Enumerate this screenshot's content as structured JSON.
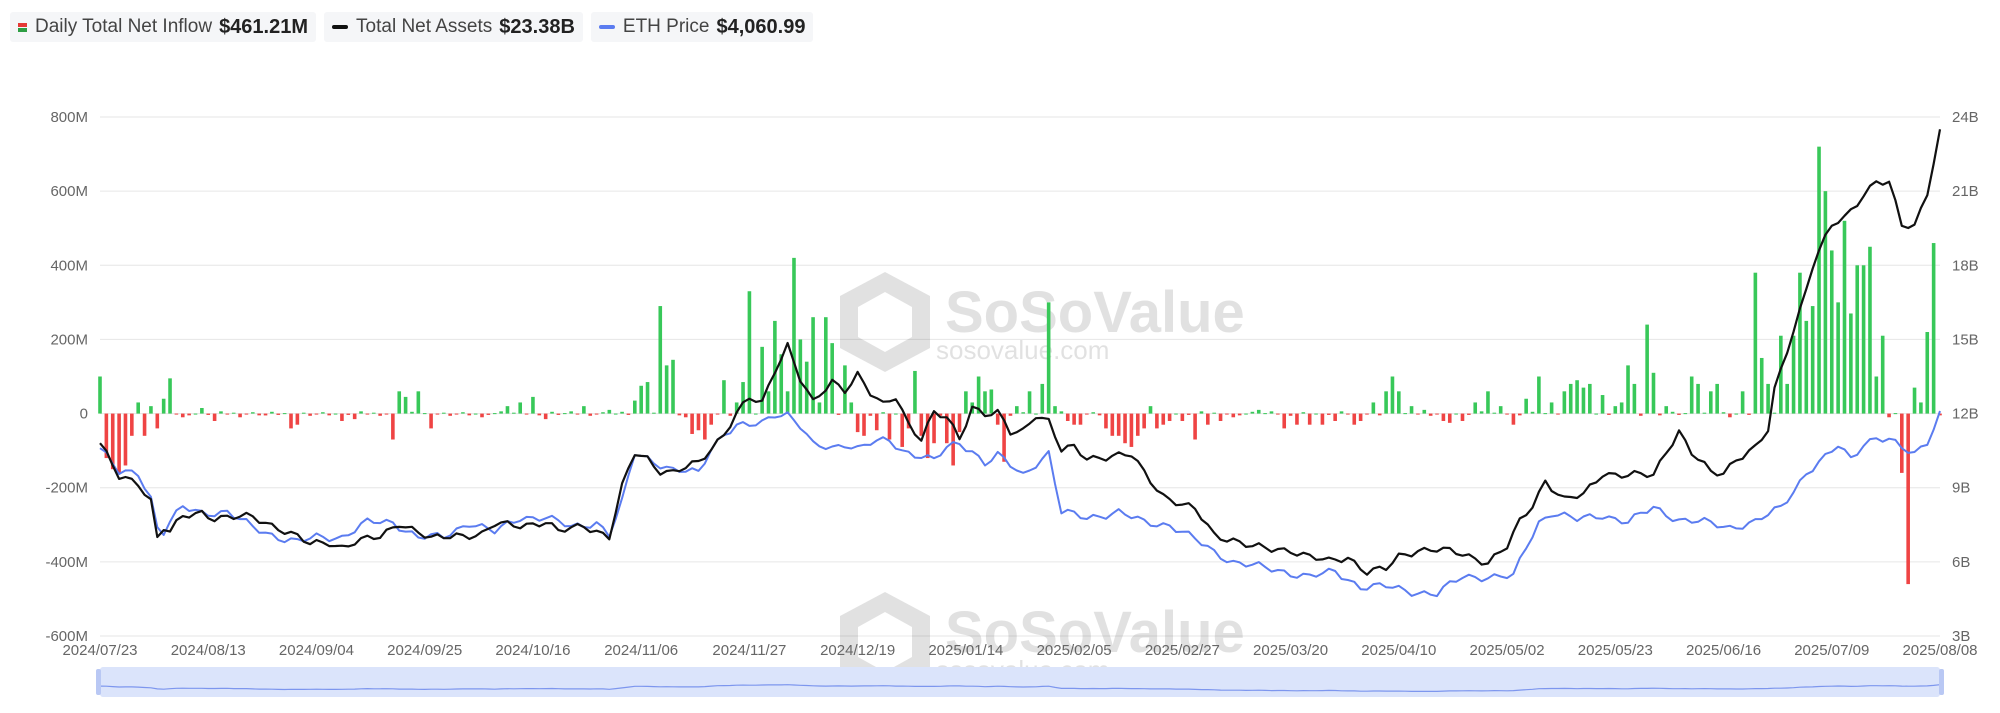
{
  "legend": [
    {
      "label": "Daily Total Net Inflow",
      "value": "$461.21M",
      "key": "split"
    },
    {
      "label": "Total Net Assets",
      "value": "$23.38B",
      "color": "#111111"
    },
    {
      "label": "ETH Price",
      "value": "$4,060.99",
      "color": "#5b7cf0"
    }
  ],
  "watermark": {
    "name": "SoSoValue",
    "domain": "sosovalue.com"
  },
  "colors": {
    "inflow": "#38c859",
    "outflow": "#ef4444",
    "assets": "#111111",
    "price": "#5b7cf0",
    "grid": "#e6e6e6"
  },
  "chart_data": {
    "type": "bar",
    "left_axis": {
      "min": -600,
      "max": 800,
      "ticks": [
        -600,
        -400,
        -200,
        0,
        200,
        400,
        600,
        800
      ],
      "tick_labels": [
        "-600M",
        "-400M",
        "-200M",
        "0",
        "200M",
        "400M",
        "600M",
        "800M"
      ]
    },
    "right_axis": {
      "min": 3,
      "max": 24,
      "ticks": [
        3,
        6,
        9,
        12,
        15,
        18,
        21,
        24
      ],
      "tick_labels": [
        "3B",
        "6B",
        "9B",
        "12B",
        "15B",
        "18B",
        "21B",
        "24B"
      ]
    },
    "x_tick_labels": [
      "2024/07/23",
      "2024/08/13",
      "2024/09/04",
      "2024/09/25",
      "2024/10/16",
      "2024/11/06",
      "2024/11/27",
      "2024/12/19",
      "2025/01/14",
      "2025/02/05",
      "2025/02/27",
      "2025/03/20",
      "2025/04/10",
      "2025/05/02",
      "2025/05/23",
      "2025/06/16",
      "2025/07/09",
      "2025/08/08"
    ],
    "grid": true,
    "legend_position": "top-left",
    "bar_keyframes": [
      [
        0,
        100
      ],
      [
        1,
        -120
      ],
      [
        2,
        -150
      ],
      [
        3,
        -160
      ],
      [
        4,
        -140
      ],
      [
        5,
        -60
      ],
      [
        6,
        30
      ],
      [
        7,
        -60
      ],
      [
        8,
        20
      ],
      [
        9,
        -40
      ],
      [
        10,
        40
      ],
      [
        11,
        95
      ],
      [
        13,
        -10
      ],
      [
        16,
        15
      ],
      [
        18,
        -20
      ],
      [
        22,
        -10
      ],
      [
        26,
        -5
      ],
      [
        30,
        -40
      ],
      [
        31,
        -30
      ],
      [
        38,
        -20
      ],
      [
        40,
        -15
      ],
      [
        46,
        -70
      ],
      [
        47,
        60
      ],
      [
        48,
        45
      ],
      [
        50,
        60
      ],
      [
        52,
        -40
      ],
      [
        60,
        -10
      ],
      [
        64,
        20
      ],
      [
        66,
        30
      ],
      [
        68,
        45
      ],
      [
        70,
        -15
      ],
      [
        76,
        20
      ],
      [
        80,
        10
      ],
      [
        84,
        35
      ],
      [
        85,
        75
      ],
      [
        86,
        85
      ],
      [
        88,
        290
      ],
      [
        89,
        130
      ],
      [
        90,
        145
      ],
      [
        92,
        -10
      ],
      [
        93,
        -55
      ],
      [
        94,
        -45
      ],
      [
        95,
        -70
      ],
      [
        96,
        -30
      ],
      [
        98,
        90
      ],
      [
        100,
        30
      ],
      [
        101,
        85
      ],
      [
        102,
        330
      ],
      [
        104,
        180
      ],
      [
        105,
        60
      ],
      [
        106,
        250
      ],
      [
        107,
        160
      ],
      [
        108,
        60
      ],
      [
        109,
        420
      ],
      [
        110,
        200
      ],
      [
        111,
        140
      ],
      [
        112,
        260
      ],
      [
        113,
        30
      ],
      [
        114,
        260
      ],
      [
        115,
        190
      ],
      [
        117,
        130
      ],
      [
        118,
        30
      ],
      [
        119,
        -50
      ],
      [
        120,
        -60
      ],
      [
        122,
        -45
      ],
      [
        124,
        -70
      ],
      [
        126,
        -90
      ],
      [
        127,
        -40
      ],
      [
        128,
        115
      ],
      [
        129,
        -60
      ],
      [
        130,
        -120
      ],
      [
        131,
        -80
      ],
      [
        133,
        -80
      ],
      [
        134,
        -140
      ],
      [
        135,
        -50
      ],
      [
        136,
        60
      ],
      [
        137,
        30
      ],
      [
        138,
        100
      ],
      [
        139,
        60
      ],
      [
        140,
        65
      ],
      [
        141,
        -30
      ],
      [
        142,
        -130
      ],
      [
        144,
        20
      ],
      [
        146,
        60
      ],
      [
        148,
        80
      ],
      [
        149,
        300
      ],
      [
        150,
        20
      ],
      [
        152,
        -20
      ],
      [
        153,
        -30
      ],
      [
        154,
        -30
      ],
      [
        158,
        -40
      ],
      [
        159,
        -60
      ],
      [
        160,
        -60
      ],
      [
        161,
        -80
      ],
      [
        162,
        -90
      ],
      [
        163,
        -60
      ],
      [
        164,
        -40
      ],
      [
        165,
        20
      ],
      [
        166,
        -40
      ],
      [
        167,
        -30
      ],
      [
        168,
        -20
      ],
      [
        170,
        -20
      ],
      [
        172,
        -70
      ],
      [
        174,
        -30
      ],
      [
        176,
        -20
      ],
      [
        178,
        -10
      ],
      [
        182,
        10
      ],
      [
        186,
        -40
      ],
      [
        188,
        -30
      ],
      [
        190,
        -30
      ],
      [
        192,
        -30
      ],
      [
        194,
        -20
      ],
      [
        197,
        -30
      ],
      [
        198,
        -20
      ],
      [
        200,
        30
      ],
      [
        202,
        60
      ],
      [
        203,
        100
      ],
      [
        204,
        60
      ],
      [
        206,
        20
      ],
      [
        208,
        10
      ],
      [
        211,
        -20
      ],
      [
        212,
        -25
      ],
      [
        214,
        -20
      ],
      [
        216,
        30
      ],
      [
        218,
        60
      ],
      [
        220,
        20
      ],
      [
        222,
        -30
      ],
      [
        224,
        40
      ],
      [
        226,
        100
      ],
      [
        228,
        30
      ],
      [
        230,
        60
      ],
      [
        231,
        80
      ],
      [
        232,
        90
      ],
      [
        233,
        70
      ],
      [
        234,
        80
      ],
      [
        236,
        50
      ],
      [
        238,
        20
      ],
      [
        239,
        30
      ],
      [
        240,
        130
      ],
      [
        241,
        80
      ],
      [
        243,
        240
      ],
      [
        244,
        110
      ],
      [
        246,
        20
      ],
      [
        250,
        100
      ],
      [
        251,
        80
      ],
      [
        253,
        60
      ],
      [
        254,
        80
      ],
      [
        256,
        -10
      ],
      [
        258,
        60
      ],
      [
        260,
        380
      ],
      [
        261,
        150
      ],
      [
        262,
        80
      ],
      [
        264,
        210
      ],
      [
        265,
        80
      ],
      [
        266,
        210
      ],
      [
        267,
        380
      ],
      [
        268,
        250
      ],
      [
        269,
        290
      ],
      [
        270,
        720
      ],
      [
        271,
        600
      ],
      [
        272,
        440
      ],
      [
        273,
        300
      ],
      [
        274,
        520
      ],
      [
        275,
        270
      ],
      [
        276,
        400
      ],
      [
        277,
        400
      ],
      [
        278,
        450
      ],
      [
        279,
        100
      ],
      [
        280,
        210
      ],
      [
        281,
        -10
      ],
      [
        283,
        -160
      ],
      [
        284,
        -460
      ],
      [
        285,
        70
      ],
      [
        286,
        30
      ],
      [
        287,
        220
      ],
      [
        288,
        460
      ]
    ],
    "assets_keyframes": [
      [
        0,
        10.8
      ],
      [
        3,
        9.4
      ],
      [
        6,
        9.2
      ],
      [
        8,
        8.5
      ],
      [
        9,
        7.0
      ],
      [
        10,
        7.4
      ],
      [
        11,
        7.2
      ],
      [
        13,
        7.8
      ],
      [
        16,
        8.0
      ],
      [
        18,
        7.8
      ],
      [
        24,
        7.8
      ],
      [
        28,
        7.4
      ],
      [
        31,
        7.0
      ],
      [
        33,
        6.7
      ],
      [
        36,
        6.8
      ],
      [
        38,
        6.6
      ],
      [
        40,
        6.8
      ],
      [
        44,
        7.0
      ],
      [
        47,
        7.6
      ],
      [
        50,
        7.2
      ],
      [
        52,
        6.9
      ],
      [
        56,
        7.1
      ],
      [
        60,
        7.1
      ],
      [
        62,
        7.5
      ],
      [
        66,
        7.5
      ],
      [
        70,
        7.6
      ],
      [
        72,
        7.2
      ],
      [
        76,
        7.5
      ],
      [
        80,
        7.0
      ],
      [
        82,
        9.0
      ],
      [
        84,
        10.4
      ],
      [
        86,
        10.2
      ],
      [
        88,
        9.7
      ],
      [
        90,
        9.6
      ],
      [
        94,
        10.0
      ],
      [
        96,
        10.6
      ],
      [
        98,
        11.2
      ],
      [
        100,
        12.0
      ],
      [
        102,
        12.6
      ],
      [
        104,
        12.4
      ],
      [
        106,
        13.8
      ],
      [
        108,
        14.8
      ],
      [
        110,
        13.4
      ],
      [
        112,
        12.4
      ],
      [
        115,
        13.3
      ],
      [
        117,
        13.0
      ],
      [
        119,
        13.6
      ],
      [
        121,
        12.8
      ],
      [
        123,
        12.3
      ],
      [
        125,
        12.7
      ],
      [
        127,
        11.6
      ],
      [
        129,
        11.0
      ],
      [
        131,
        12.0
      ],
      [
        133,
        11.8
      ],
      [
        135,
        11.0
      ],
      [
        137,
        12.3
      ],
      [
        139,
        12.0
      ],
      [
        141,
        12.0
      ],
      [
        143,
        11.2
      ],
      [
        145,
        11.3
      ],
      [
        147,
        12.0
      ],
      [
        149,
        11.7
      ],
      [
        151,
        10.5
      ],
      [
        153,
        10.6
      ],
      [
        155,
        10.2
      ],
      [
        159,
        10.3
      ],
      [
        162,
        10.3
      ],
      [
        164,
        9.6
      ],
      [
        167,
        8.7
      ],
      [
        170,
        8.3
      ],
      [
        172,
        8.1
      ],
      [
        175,
        7.1
      ],
      [
        178,
        6.9
      ],
      [
        181,
        6.6
      ],
      [
        184,
        6.5
      ],
      [
        187,
        6.5
      ],
      [
        190,
        6.2
      ],
      [
        193,
        6.0
      ],
      [
        196,
        6.2
      ],
      [
        199,
        5.6
      ],
      [
        202,
        5.7
      ],
      [
        204,
        6.2
      ],
      [
        207,
        6.5
      ],
      [
        210,
        6.5
      ],
      [
        214,
        6.3
      ],
      [
        218,
        6.0
      ],
      [
        221,
        6.6
      ],
      [
        223,
        7.6
      ],
      [
        225,
        8.3
      ],
      [
        227,
        9.3
      ],
      [
        230,
        8.5
      ],
      [
        233,
        8.7
      ],
      [
        236,
        9.6
      ],
      [
        240,
        9.5
      ],
      [
        244,
        9.5
      ],
      [
        246,
        10.5
      ],
      [
        248,
        11.3
      ],
      [
        250,
        10.4
      ],
      [
        253,
        9.6
      ],
      [
        255,
        9.6
      ],
      [
        257,
        10.2
      ],
      [
        260,
        10.6
      ],
      [
        262,
        11.3
      ],
      [
        263,
        12.9
      ],
      [
        265,
        14.6
      ],
      [
        267,
        16.2
      ],
      [
        269,
        18.0
      ],
      [
        272,
        19.6
      ],
      [
        274,
        19.9
      ],
      [
        277,
        20.9
      ],
      [
        279,
        21.4
      ],
      [
        281,
        21.3
      ],
      [
        283,
        19.6
      ],
      [
        285,
        19.6
      ],
      [
        287,
        21.0
      ],
      [
        289,
        23.4
      ]
    ],
    "price_keyframes": [
      [
        0,
        10.6
      ],
      [
        3,
        9.6
      ],
      [
        6,
        9.6
      ],
      [
        8,
        8.6
      ],
      [
        9,
        7.4
      ],
      [
        10,
        7.2
      ],
      [
        11,
        7.6
      ],
      [
        13,
        8.2
      ],
      [
        16,
        8.0
      ],
      [
        20,
        8.0
      ],
      [
        24,
        7.4
      ],
      [
        28,
        7.0
      ],
      [
        31,
        6.8
      ],
      [
        34,
        7.0
      ],
      [
        38,
        7.0
      ],
      [
        42,
        7.6
      ],
      [
        46,
        7.6
      ],
      [
        50,
        7.0
      ],
      [
        54,
        7.0
      ],
      [
        58,
        7.6
      ],
      [
        62,
        7.2
      ],
      [
        66,
        7.8
      ],
      [
        70,
        7.8
      ],
      [
        74,
        7.4
      ],
      [
        78,
        7.6
      ],
      [
        80,
        7.1
      ],
      [
        82,
        8.4
      ],
      [
        84,
        10.4
      ],
      [
        86,
        10.2
      ],
      [
        90,
        9.7
      ],
      [
        94,
        9.6
      ],
      [
        96,
        10.6
      ],
      [
        98,
        11.2
      ],
      [
        100,
        11.5
      ],
      [
        102,
        11.5
      ],
      [
        104,
        11.6
      ],
      [
        106,
        12.0
      ],
      [
        108,
        12.0
      ],
      [
        110,
        11.5
      ],
      [
        112,
        10.7
      ],
      [
        115,
        10.6
      ],
      [
        117,
        10.8
      ],
      [
        119,
        10.6
      ],
      [
        121,
        10.8
      ],
      [
        124,
        10.9
      ],
      [
        126,
        10.5
      ],
      [
        129,
        10.3
      ],
      [
        131,
        10.1
      ],
      [
        133,
        10.6
      ],
      [
        135,
        10.8
      ],
      [
        137,
        10.5
      ],
      [
        139,
        10.0
      ],
      [
        141,
        10.3
      ],
      [
        143,
        9.9
      ],
      [
        145,
        9.5
      ],
      [
        147,
        10.0
      ],
      [
        149,
        10.4
      ],
      [
        151,
        8.0
      ],
      [
        155,
        7.8
      ],
      [
        160,
        8.0
      ],
      [
        164,
        7.6
      ],
      [
        168,
        7.5
      ],
      [
        172,
        6.9
      ],
      [
        175,
        6.4
      ],
      [
        178,
        6.0
      ],
      [
        182,
        5.8
      ],
      [
        186,
        5.6
      ],
      [
        190,
        5.4
      ],
      [
        194,
        5.6
      ],
      [
        198,
        5.0
      ],
      [
        202,
        5.0
      ],
      [
        206,
        4.8
      ],
      [
        210,
        4.7
      ],
      [
        214,
        5.4
      ],
      [
        218,
        5.4
      ],
      [
        222,
        5.4
      ],
      [
        224,
        6.6
      ],
      [
        226,
        7.6
      ],
      [
        228,
        8.0
      ],
      [
        232,
        7.7
      ],
      [
        236,
        7.9
      ],
      [
        240,
        7.6
      ],
      [
        244,
        8.2
      ],
      [
        248,
        7.7
      ],
      [
        252,
        7.6
      ],
      [
        256,
        7.4
      ],
      [
        260,
        7.6
      ],
      [
        264,
        8.2
      ],
      [
        268,
        9.6
      ],
      [
        271,
        10.2
      ],
      [
        273,
        10.7
      ],
      [
        275,
        10.2
      ],
      [
        277,
        10.8
      ],
      [
        279,
        11.0
      ],
      [
        281,
        10.9
      ],
      [
        283,
        10.6
      ],
      [
        285,
        10.4
      ],
      [
        287,
        10.9
      ],
      [
        289,
        12.0
      ]
    ]
  }
}
